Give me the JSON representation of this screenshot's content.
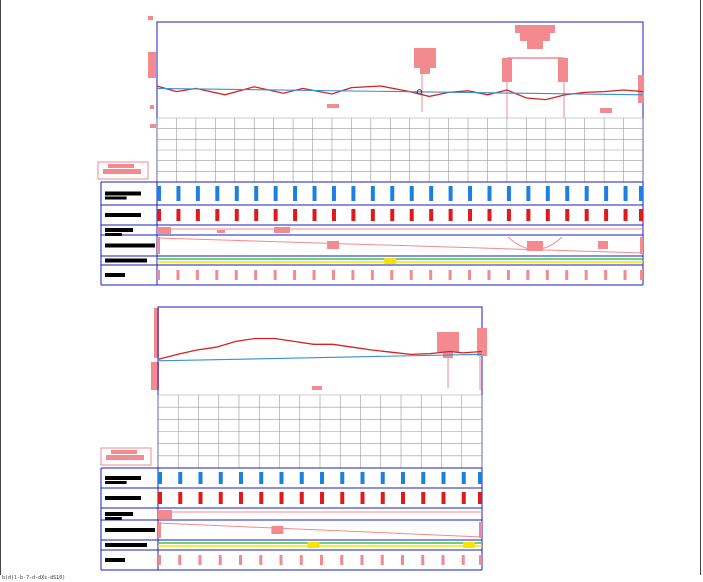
{
  "footer": {
    "text": "b(d)l-b-7-d-dXs-dS10)"
  },
  "colors": {
    "frame": "#1a1fbf",
    "grid": "#9a9a9a",
    "profile": "#d62222",
    "design_line": "#3b8fd4",
    "pink_block": "#f28a8f",
    "blue_mark": "#1f7fe0",
    "red_mark": "#e01a1a",
    "label_bar": "#000000",
    "yellow": "#f5e400",
    "green": "#3cc24a"
  },
  "panels": [
    {
      "id": "panel-1",
      "profile_points": [
        [
          0,
          0.55
        ],
        [
          0.04,
          0.62
        ],
        [
          0.08,
          0.58
        ],
        [
          0.14,
          0.66
        ],
        [
          0.2,
          0.56
        ],
        [
          0.26,
          0.64
        ],
        [
          0.3,
          0.58
        ],
        [
          0.36,
          0.65
        ],
        [
          0.4,
          0.57
        ],
        [
          0.46,
          0.55
        ],
        [
          0.52,
          0.62
        ],
        [
          0.56,
          0.68
        ],
        [
          0.6,
          0.63
        ],
        [
          0.64,
          0.61
        ],
        [
          0.68,
          0.66
        ],
        [
          0.72,
          0.6
        ],
        [
          0.76,
          0.7
        ],
        [
          0.8,
          0.72
        ],
        [
          0.84,
          0.66
        ],
        [
          0.88,
          0.63
        ],
        [
          0.92,
          0.62
        ],
        [
          0.96,
          0.6
        ],
        [
          1,
          0.62
        ]
      ],
      "design_start": 0.58,
      "design_end": 0.66,
      "vertex_position": 0.54,
      "blue_marks": 25,
      "red_marks": 25,
      "small_marks": 25,
      "yellow_marks": [
        0.48
      ]
    },
    {
      "id": "panel-2",
      "profile_points": [
        [
          0,
          0.45
        ],
        [
          0.06,
          0.38
        ],
        [
          0.12,
          0.32
        ],
        [
          0.18,
          0.28
        ],
        [
          0.24,
          0.2
        ],
        [
          0.3,
          0.16
        ],
        [
          0.36,
          0.16
        ],
        [
          0.42,
          0.2
        ],
        [
          0.48,
          0.24
        ],
        [
          0.54,
          0.24
        ],
        [
          0.6,
          0.28
        ],
        [
          0.66,
          0.32
        ],
        [
          0.72,
          0.35
        ],
        [
          0.78,
          0.38
        ],
        [
          0.84,
          0.37
        ],
        [
          0.9,
          0.34
        ],
        [
          0.94,
          0.36
        ],
        [
          1,
          0.34
        ]
      ],
      "design_start": 0.47,
      "design_end": 0.38,
      "vertex_position": null,
      "blue_marks": 16,
      "red_marks": 16,
      "small_marks": 16,
      "yellow_marks": [
        0.48,
        0.96
      ]
    }
  ]
}
